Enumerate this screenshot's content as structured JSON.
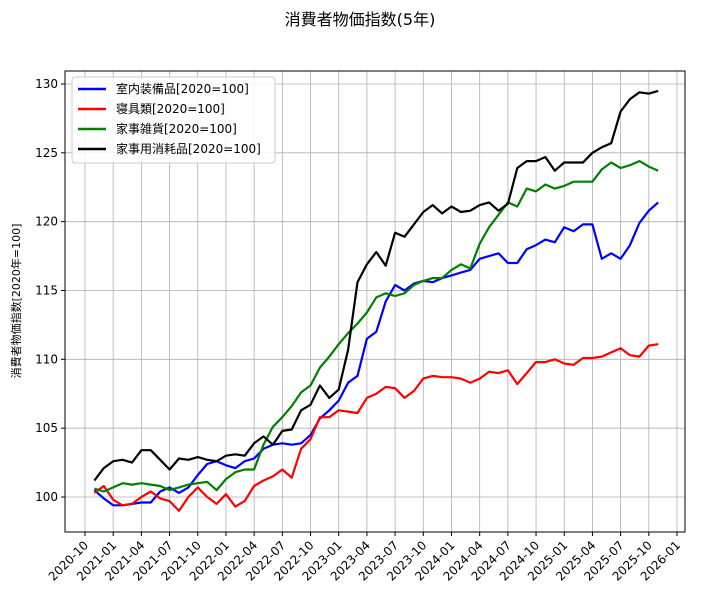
{
  "chart_data": {
    "type": "line",
    "title": "消費者物価指数(5年)",
    "xlabel": "",
    "ylabel": "消費者物価指数[2020年=100]",
    "ylim": [
      97.5,
      131
    ],
    "yticks": [
      100,
      105,
      110,
      115,
      120,
      125,
      130
    ],
    "xticks": [
      "2020-10",
      "2021-01",
      "2021-04",
      "2021-07",
      "2021-10",
      "2022-01",
      "2022-04",
      "2022-07",
      "2022-10",
      "2023-01",
      "2023-04",
      "2023-07",
      "2023-10",
      "2024-01",
      "2024-04",
      "2024-07",
      "2024-10",
      "2025-01",
      "2025-04",
      "2025-07",
      "2025-10",
      "2026-01"
    ],
    "grid": true,
    "legend_position": "upper left",
    "x_start": "2020-11",
    "x_end": "2025-11",
    "frequency": "monthly",
    "series": [
      {
        "name": "室内装備品[2020=100]",
        "color": "#0000ff",
        "values": [
          100.5,
          99.9,
          99.4,
          99.4,
          99.5,
          99.6,
          99.6,
          100.4,
          100.7,
          100.3,
          100.7,
          101.6,
          102.4,
          102.6,
          102.3,
          102.1,
          102.6,
          102.8,
          103.5,
          103.8,
          103.9,
          103.8,
          103.9,
          104.5,
          105.7,
          106.3,
          107.0,
          108.3,
          108.8,
          111.5,
          112.0,
          114.2,
          115.4,
          115.0,
          115.5,
          115.7,
          115.6,
          115.9,
          116.1,
          116.3,
          116.5,
          117.3,
          117.5,
          117.7,
          117.0,
          117.0,
          118.0,
          118.3,
          118.7,
          118.5,
          119.6,
          119.3,
          119.8,
          119.8,
          117.3,
          117.7,
          117.3,
          118.3,
          119.9,
          120.8,
          121.4
        ]
      },
      {
        "name": "寝具類[2020=100]",
        "color": "#ff0000",
        "values": [
          100.3,
          100.8,
          99.8,
          99.4,
          99.5,
          100.0,
          100.4,
          99.9,
          99.7,
          99.0,
          100.0,
          100.7,
          100.0,
          99.5,
          100.2,
          99.3,
          99.7,
          100.8,
          101.2,
          101.5,
          102.0,
          101.4,
          103.5,
          104.2,
          105.8,
          105.8,
          106.3,
          106.2,
          106.1,
          107.2,
          107.5,
          108.0,
          107.9,
          107.2,
          107.7,
          108.6,
          108.8,
          108.7,
          108.7,
          108.6,
          108.3,
          108.6,
          109.1,
          109.0,
          109.2,
          108.2,
          109.0,
          109.8,
          109.8,
          110.0,
          109.7,
          109.6,
          110.1,
          110.1,
          110.2,
          110.5,
          110.8,
          110.3,
          110.2,
          111.0,
          111.1
        ]
      },
      {
        "name": "家事雑貨[2020=100]",
        "color": "#008000",
        "values": [
          100.6,
          100.4,
          100.7,
          101.0,
          100.9,
          101.0,
          100.9,
          100.8,
          100.5,
          100.7,
          100.9,
          101.0,
          101.1,
          100.5,
          101.3,
          101.8,
          102.0,
          102.0,
          103.8,
          105.1,
          105.8,
          106.6,
          107.6,
          108.1,
          109.4,
          110.2,
          111.1,
          111.9,
          112.6,
          113.4,
          114.5,
          114.8,
          114.6,
          114.8,
          115.4,
          115.7,
          115.9,
          115.9,
          116.5,
          116.9,
          116.6,
          118.4,
          119.6,
          120.5,
          121.4,
          121.1,
          122.4,
          122.2,
          122.7,
          122.4,
          122.6,
          122.9,
          122.9,
          122.9,
          123.8,
          124.3,
          123.9,
          124.1,
          124.4,
          124.0,
          123.7
        ]
      },
      {
        "name": "家事用消耗品[2020=100]",
        "color": "#000000",
        "values": [
          101.2,
          102.1,
          102.6,
          102.7,
          102.5,
          103.4,
          103.4,
          102.7,
          102.0,
          102.8,
          102.7,
          102.9,
          102.7,
          102.6,
          103.0,
          103.1,
          103.0,
          103.9,
          104.4,
          103.8,
          104.8,
          104.9,
          106.3,
          106.7,
          108.1,
          107.2,
          107.8,
          110.7,
          115.6,
          116.9,
          117.8,
          116.8,
          119.2,
          118.9,
          119.8,
          120.7,
          121.2,
          120.6,
          121.1,
          120.7,
          120.8,
          121.2,
          121.4,
          120.8,
          121.3,
          123.9,
          124.4,
          124.4,
          124.7,
          123.7,
          124.3,
          124.3,
          124.3,
          125.0,
          125.4,
          125.7,
          128.0,
          128.9,
          129.4,
          129.3,
          129.5
        ]
      }
    ]
  }
}
